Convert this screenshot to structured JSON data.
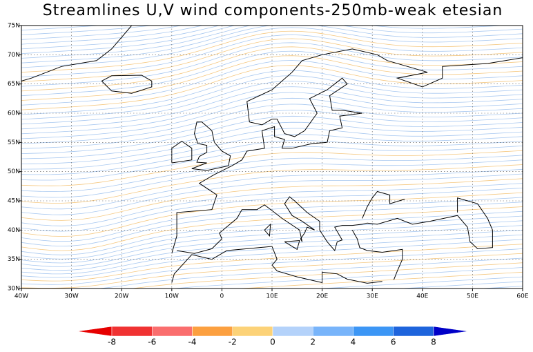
{
  "map": {
    "title": "Streamlines U,V wind components-250mb-weak etesian",
    "xlim": [
      -40,
      60
    ],
    "ylim": [
      30,
      75
    ],
    "xticks": [
      {
        "value": -40,
        "label": "40W"
      },
      {
        "value": -30,
        "label": "30W"
      },
      {
        "value": -20,
        "label": "20W"
      },
      {
        "value": -10,
        "label": "10W"
      },
      0,
      {
        "value": 10,
        "label": "10E"
      },
      {
        "value": 20,
        "label": "20E"
      },
      {
        "value": 30,
        "label": "30E"
      },
      {
        "value": 40,
        "label": "40E"
      },
      {
        "value": 50,
        "label": "50E"
      },
      {
        "value": 60,
        "label": "60E"
      }
    ],
    "yticks": [
      {
        "value": 30,
        "label": "30N"
      },
      {
        "value": 35,
        "label": "35N"
      },
      {
        "value": 40,
        "label": "40N"
      },
      {
        "value": 45,
        "label": "45N"
      },
      {
        "value": 50,
        "label": "50N"
      },
      {
        "value": 55,
        "label": "55N"
      },
      {
        "value": 60,
        "label": "60N"
      },
      {
        "value": 65,
        "label": "65N"
      },
      {
        "value": 70,
        "label": "70N"
      },
      {
        "value": 75,
        "label": "75N"
      }
    ],
    "grid": true,
    "colorbar": {
      "ticks": [
        -8,
        -6,
        -4,
        -2,
        0,
        2,
        4,
        6,
        8
      ],
      "colors": [
        "#e60000",
        "#f03232",
        "#fa6e6e",
        "#fca040",
        "#fcd278",
        "#b4d2fa",
        "#78b4fa",
        "#3c96f5",
        "#1e64dc",
        "#0000c8"
      ]
    }
  }
}
